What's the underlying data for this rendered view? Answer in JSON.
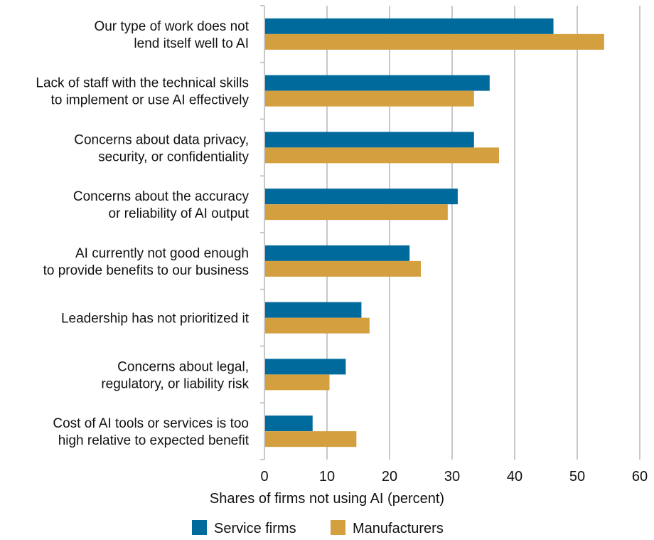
{
  "chart_data": {
    "type": "bar",
    "orientation": "horizontal",
    "categories": [
      [
        "Our type of work does not",
        "lend itself well to AI"
      ],
      [
        "Lack of staff with the technical skills",
        "to implement or use AI effectively"
      ],
      [
        "Concerns about data privacy,",
        "security, or confidentiality"
      ],
      [
        "Concerns about the accuracy",
        "or reliability of AI output"
      ],
      [
        "AI currently not good enough",
        "to provide benefits to our business"
      ],
      [
        "Leadership has not prioritized it"
      ],
      [
        "Concerns about legal,",
        "regulatory, or liability risk"
      ],
      [
        "Cost of AI tools or services is too",
        "high relative to expected benefit"
      ]
    ],
    "series": [
      {
        "name": "Service firms",
        "color": "#006a9c",
        "values": [
          46.2,
          36.0,
          33.5,
          30.9,
          23.2,
          15.5,
          13.0,
          7.7
        ]
      },
      {
        "name": "Manufacturers",
        "color": "#d4a03f",
        "values": [
          54.3,
          33.5,
          37.5,
          29.3,
          25.0,
          16.8,
          10.4,
          14.7
        ]
      }
    ],
    "xlim": [
      0,
      60
    ],
    "xticks": [
      "0",
      "10",
      "20",
      "30",
      "40",
      "50",
      "60"
    ],
    "xlabel": "Shares of firms not using AI (percent)",
    "grid": true,
    "legend_position": "bottom"
  }
}
